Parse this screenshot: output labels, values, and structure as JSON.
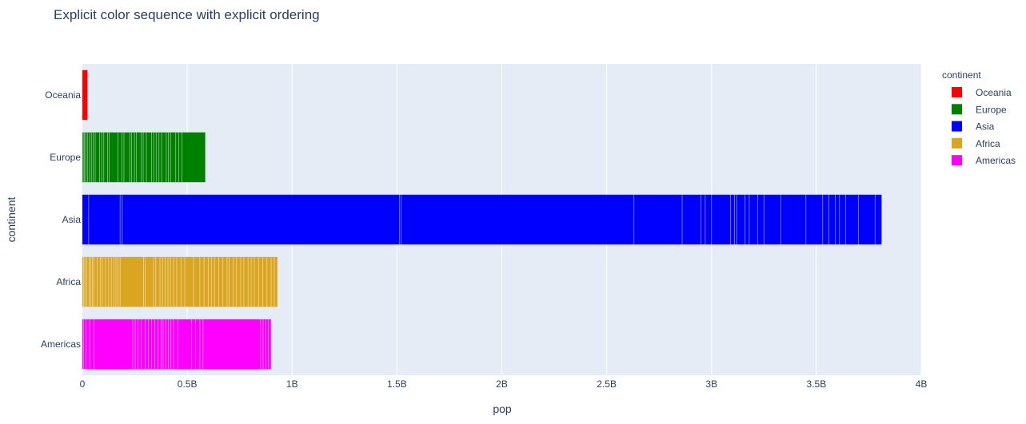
{
  "chart_data": {
    "type": "bar",
    "orientation": "horizontal",
    "title": "Explicit color sequence with explicit ordering",
    "xlabel": "pop",
    "ylabel": "continent",
    "xlim": [
      0,
      4000000000
    ],
    "x_ticks": [
      {
        "value": 0,
        "label": "0"
      },
      {
        "value": 500000000,
        "label": "0.5B"
      },
      {
        "value": 1000000000,
        "label": "1B"
      },
      {
        "value": 1500000000,
        "label": "1.5B"
      },
      {
        "value": 2000000000,
        "label": "2B"
      },
      {
        "value": 2500000000,
        "label": "2.5B"
      },
      {
        "value": 3000000000,
        "label": "3B"
      },
      {
        "value": 3500000000,
        "label": "3.5B"
      },
      {
        "value": 4000000000,
        "label": "4B"
      }
    ],
    "grid": true,
    "stacked": true,
    "legend_title": "continent",
    "legend_position": "top-right",
    "categories": [
      "Oceania",
      "Europe",
      "Asia",
      "Africa",
      "Americas"
    ],
    "series": [
      {
        "name": "Oceania",
        "color": "#ff0000",
        "total": 24500000
      },
      {
        "name": "Europe",
        "color": "#008000",
        "total": 586000000
      },
      {
        "name": "Asia",
        "color": "#0000ff",
        "total": 3811000000
      },
      {
        "name": "Africa",
        "color": "#daa520",
        "total": 930000000
      },
      {
        "name": "Americas",
        "color": "#ff00ff",
        "total": 899000000
      }
    ],
    "segment_boundaries": {
      "Oceania": [],
      "Europe": [
        4000000,
        9000000,
        16000000,
        24000000,
        34000000,
        43000000,
        52000000,
        61000000,
        82000000,
        92000000,
        102000000,
        120000000,
        128000000,
        170000000,
        188000000,
        198000000,
        226000000,
        235000000,
        248000000,
        258000000,
        280000000,
        290000000,
        305000000,
        330000000,
        340000000,
        352000000,
        365000000,
        378000000,
        400000000,
        410000000,
        420000000,
        445000000,
        460000000,
        475000000
      ],
      "Asia": [
        30000000,
        180000000,
        190000000,
        1512000000,
        1520000000,
        2630000000,
        2860000000,
        2950000000,
        2970000000,
        3000000000,
        3090000000,
        3110000000,
        3120000000,
        3160000000,
        3180000000,
        3220000000,
        3250000000,
        3330000000,
        3450000000,
        3530000000,
        3560000000,
        3590000000,
        3610000000,
        3640000000,
        3700000000,
        3780000000
      ],
      "Africa": [
        6000000,
        12000000,
        20000000,
        32000000,
        40000000,
        48000000,
        55000000,
        70000000,
        85000000,
        95000000,
        110000000,
        125000000,
        138000000,
        150000000,
        160000000,
        170000000,
        180000000,
        292000000,
        300000000,
        340000000,
        350000000,
        370000000,
        382000000,
        395000000,
        408000000,
        420000000,
        435000000,
        450000000,
        470000000,
        488000000,
        530000000,
        560000000,
        580000000,
        600000000,
        615000000,
        630000000,
        650000000,
        670000000,
        690000000,
        700000000,
        720000000,
        735000000,
        755000000,
        770000000,
        790000000,
        805000000,
        820000000,
        840000000,
        860000000,
        880000000,
        900000000,
        915000000
      ],
      "Americas": [
        5000000,
        18000000,
        35000000,
        55000000,
        240000000,
        252000000,
        265000000,
        280000000,
        300000000,
        315000000,
        330000000,
        345000000,
        360000000,
        375000000,
        385000000,
        398000000,
        410000000,
        422000000,
        435000000,
        455000000,
        520000000,
        540000000,
        560000000,
        575000000,
        850000000,
        862000000,
        875000000,
        887000000
      ]
    }
  }
}
